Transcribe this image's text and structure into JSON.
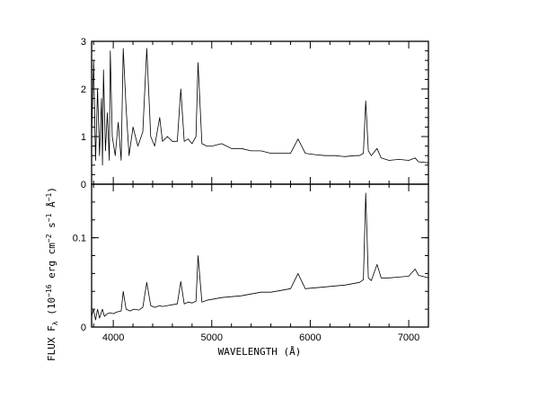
{
  "chart_data": [
    {
      "type": "line",
      "panel": "top",
      "xlim": [
        3780,
        7200
      ],
      "ylim": [
        0,
        3
      ],
      "y_ticks": [
        0,
        1,
        2,
        3
      ],
      "y_tick_labels": [
        "0",
        "1",
        "2",
        "3"
      ],
      "series": [
        {
          "x": [
            3780,
            3800,
            3820,
            3840,
            3860,
            3880,
            3890,
            3900,
            3920,
            3940,
            3960,
            3970,
            3990,
            4020,
            4050,
            4080,
            4101,
            4130,
            4160,
            4200,
            4250,
            4300,
            4340,
            4380,
            4420,
            4471,
            4500,
            4550,
            4600,
            4650,
            4686,
            4720,
            4760,
            4800,
            4840,
            4861,
            4900,
            4950,
            5000,
            5100,
            5200,
            5300,
            5400,
            5500,
            5600,
            5700,
            5800,
            5876,
            5950,
            6050,
            6150,
            6250,
            6350,
            6450,
            6500,
            6540,
            6563,
            6590,
            6620,
            6678,
            6720,
            6800,
            6900,
            7000,
            7065,
            7100,
            7200
          ],
          "y": [
            1.0,
            2.6,
            0.5,
            2.0,
            0.6,
            1.8,
            0.4,
            2.4,
            0.7,
            1.5,
            0.5,
            2.8,
            1.0,
            0.6,
            1.3,
            0.5,
            2.85,
            1.6,
            0.6,
            1.2,
            0.8,
            1.1,
            2.85,
            1.0,
            0.8,
            1.4,
            0.9,
            1.0,
            0.9,
            0.9,
            2.0,
            0.9,
            0.95,
            0.85,
            1.0,
            2.55,
            0.85,
            0.8,
            0.8,
            0.85,
            0.75,
            0.75,
            0.7,
            0.7,
            0.65,
            0.65,
            0.65,
            0.95,
            0.65,
            0.62,
            0.6,
            0.6,
            0.58,
            0.6,
            0.6,
            0.65,
            1.75,
            0.7,
            0.6,
            0.75,
            0.55,
            0.5,
            0.52,
            0.5,
            0.55,
            0.47,
            0.45
          ]
        }
      ]
    },
    {
      "type": "line",
      "panel": "bottom",
      "xlim": [
        3780,
        7200
      ],
      "ylim": [
        0,
        0.16
      ],
      "y_ticks": [
        0,
        0.1
      ],
      "y_tick_labels": [
        "0",
        "0.1"
      ],
      "x_ticks": [
        4000,
        5000,
        6000,
        7000
      ],
      "x_tick_labels": [
        "4000",
        "5000",
        "6000",
        "7000"
      ],
      "xlabel": "WAVELENGTH (Å)",
      "ylabel_parts": {
        "main": "FLUX  F",
        "sub": "λ",
        "after": " (10",
        "sup": "−16",
        "tail": " erg cm",
        "sup2": "−2",
        "tail2": " s",
        "sup3": "−1",
        "tail3": " Å",
        "sup4": "−1",
        "end": ")"
      },
      "series": [
        {
          "x": [
            3780,
            3800,
            3820,
            3840,
            3860,
            3889,
            3910,
            3940,
            3970,
            4000,
            4040,
            4080,
            4101,
            4130,
            4170,
            4210,
            4260,
            4300,
            4340,
            4380,
            4420,
            4471,
            4500,
            4550,
            4600,
            4650,
            4686,
            4720,
            4760,
            4800,
            4840,
            4861,
            4900,
            4950,
            5000,
            5100,
            5200,
            5300,
            5400,
            5500,
            5600,
            5700,
            5800,
            5876,
            5950,
            6050,
            6150,
            6250,
            6350,
            6450,
            6500,
            6540,
            6563,
            6590,
            6620,
            6678,
            6720,
            6800,
            6900,
            7000,
            7065,
            7100,
            7200
          ],
          "y": [
            0.012,
            0.02,
            0.008,
            0.02,
            0.01,
            0.02,
            0.012,
            0.015,
            0.016,
            0.015,
            0.017,
            0.018,
            0.04,
            0.02,
            0.018,
            0.02,
            0.019,
            0.022,
            0.05,
            0.024,
            0.022,
            0.024,
            0.023,
            0.024,
            0.025,
            0.026,
            0.051,
            0.026,
            0.028,
            0.027,
            0.029,
            0.08,
            0.028,
            0.03,
            0.031,
            0.033,
            0.034,
            0.035,
            0.037,
            0.039,
            0.039,
            0.041,
            0.043,
            0.06,
            0.043,
            0.044,
            0.045,
            0.046,
            0.047,
            0.049,
            0.05,
            0.053,
            0.15,
            0.055,
            0.052,
            0.07,
            0.055,
            0.055,
            0.056,
            0.057,
            0.065,
            0.058,
            0.055
          ]
        }
      ]
    }
  ]
}
